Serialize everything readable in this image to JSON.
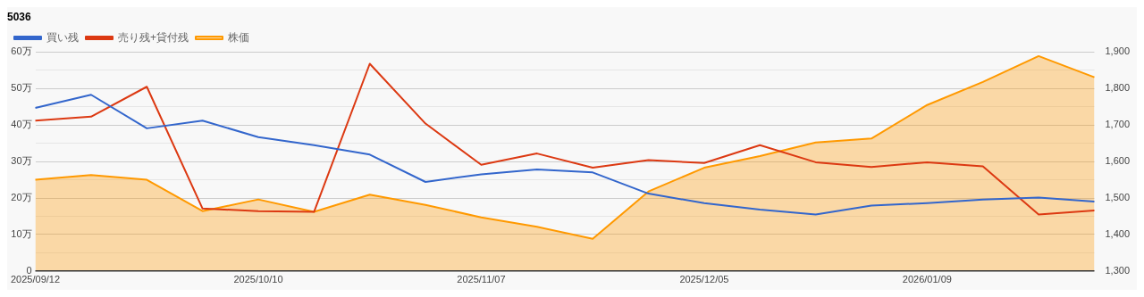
{
  "chart_data": {
    "type": "line",
    "title": "5036",
    "categories": [
      "2025/09/12",
      null,
      null,
      null,
      "2025/10/10",
      null,
      null,
      null,
      "2025/11/07",
      null,
      null,
      null,
      "2025/12/05",
      null,
      null,
      null,
      "2026/01/09",
      null,
      null,
      null
    ],
    "series": [
      {
        "name": "買い残",
        "color": "#3366cc",
        "values": [
          44.7,
          48.3,
          39.1,
          41.2,
          36.7,
          34.5,
          31.9,
          24.4,
          26.5,
          27.8,
          27.0,
          21.2,
          18.6,
          16.8,
          15.5,
          17.9,
          18.6,
          19.6,
          20.1,
          19.0
        ]
      },
      {
        "name": "売り残+貸付残",
        "color": "#dc3912",
        "values": [
          41.2,
          42.3,
          50.5,
          17.1,
          16.4,
          16.2,
          56.8,
          40.4,
          29.1,
          32.2,
          28.3,
          30.4,
          29.6,
          34.5,
          29.8,
          28.5,
          29.8,
          28.7,
          15.5,
          16.6
        ]
      },
      {
        "name": "株価",
        "type": "area",
        "axis": "y2",
        "color": "#ff9900",
        "values": [
          1550,
          1563,
          1550,
          1464,
          1496,
          1462,
          1509,
          1481,
          1447,
          1421,
          1388,
          1518,
          1583,
          1615,
          1652,
          1663,
          1755,
          1818,
          1889,
          1831
        ]
      }
    ],
    "ylim": [
      0,
      60
    ],
    "yticks": [
      {
        "value": 0,
        "label": "0"
      },
      {
        "value": 5,
        "label": null
      },
      {
        "value": 10,
        "label": "10万"
      },
      {
        "value": 15,
        "label": null
      },
      {
        "value": 20,
        "label": "20万"
      },
      {
        "value": 25,
        "label": null
      },
      {
        "value": 30,
        "label": "30万"
      },
      {
        "value": 35,
        "label": null
      },
      {
        "value": 40,
        "label": "40万"
      },
      {
        "value": 45,
        "label": null
      },
      {
        "value": 50,
        "label": "50万"
      },
      {
        "value": 55,
        "label": null
      },
      {
        "value": 60,
        "label": "60万"
      }
    ],
    "y2lim": [
      1300,
      1900
    ],
    "y2ticks": [
      {
        "value": 1300,
        "label": "1,300"
      },
      {
        "value": 1400,
        "label": "1,400"
      },
      {
        "value": 1500,
        "label": "1,500"
      },
      {
        "value": 1600,
        "label": "1,600"
      },
      {
        "value": 1700,
        "label": "1,700"
      },
      {
        "value": 1800,
        "label": "1,800"
      },
      {
        "value": 1900,
        "label": "1,900"
      }
    ],
    "grid": "y",
    "legend": "top left",
    "marker": "none",
    "line_style": "solid"
  }
}
